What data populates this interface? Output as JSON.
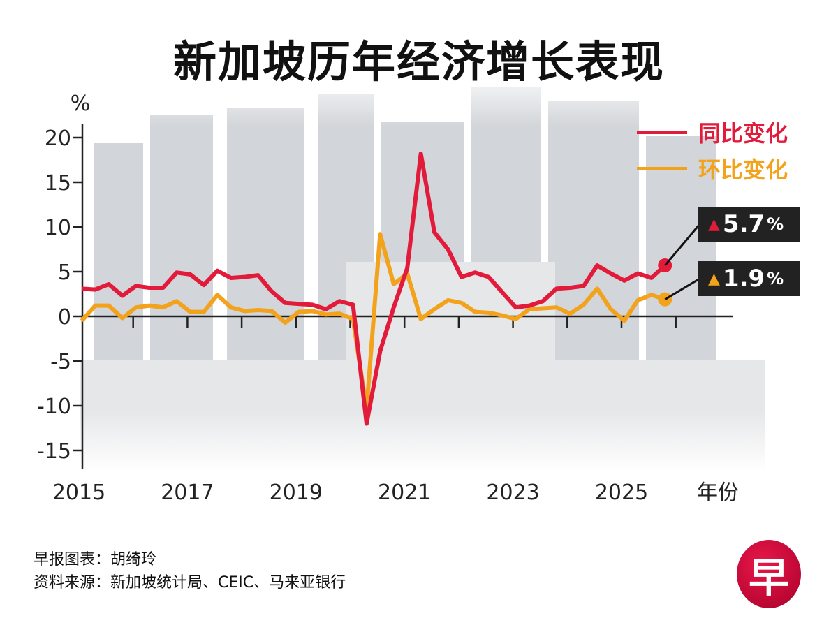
{
  "title": "新加坡历年经济增长表现",
  "footer": {
    "credit": "早报图表：胡绮玲",
    "source": "资料来源：新加坡统计局、CEIC、马来亚银行"
  },
  "logo_text": "早",
  "callouts": [
    {
      "icon": "triangle-up-icon",
      "value": "5.7",
      "unit": "%",
      "color": "#e31b3b"
    },
    {
      "icon": "triangle-up-icon",
      "value": "1.9",
      "unit": "%",
      "color": "#f3a21c"
    }
  ],
  "chart_data": {
    "type": "line",
    "title": "新加坡历年经济增长表现",
    "ylabel": "%",
    "xlabel": "年份",
    "ylim": [
      -15,
      20
    ],
    "yticks": [
      20,
      15,
      10,
      5,
      0,
      -5,
      -10,
      -15
    ],
    "xticks": [
      "2015",
      "2017",
      "2019",
      "2021",
      "2023",
      "2025"
    ],
    "grid": false,
    "legend_position": "top-right",
    "x": [
      "2015Q1",
      "2015Q2",
      "2015Q3",
      "2015Q4",
      "2016Q1",
      "2016Q2",
      "2016Q3",
      "2016Q4",
      "2017Q1",
      "2017Q2",
      "2017Q3",
      "2017Q4",
      "2018Q1",
      "2018Q2",
      "2018Q3",
      "2018Q4",
      "2019Q1",
      "2019Q2",
      "2019Q3",
      "2019Q4",
      "2020Q1",
      "2020Q2",
      "2020Q3",
      "2020Q4",
      "2021Q1",
      "2021Q2",
      "2021Q3",
      "2021Q4",
      "2022Q1",
      "2022Q2",
      "2022Q3",
      "2022Q4",
      "2023Q1",
      "2023Q2",
      "2023Q3",
      "2023Q4",
      "2024Q1",
      "2024Q2",
      "2024Q3",
      "2024Q4",
      "2025Q1",
      "2025Q2",
      "2025Q3",
      "2025Q4"
    ],
    "series": [
      {
        "name": "同比变化",
        "color": "#e31b3b",
        "values": [
          3.1,
          3.0,
          3.6,
          2.3,
          3.4,
          3.2,
          3.2,
          4.9,
          4.7,
          3.5,
          5.1,
          4.3,
          4.4,
          4.6,
          2.8,
          1.5,
          1.4,
          1.3,
          0.8,
          1.7,
          1.3,
          -12.0,
          -3.9,
          1.0,
          5.4,
          18.2,
          9.4,
          7.5,
          4.4,
          4.9,
          4.4,
          2.7,
          1.0,
          1.2,
          1.7,
          3.1,
          3.2,
          3.4,
          5.7,
          4.8,
          4.0,
          4.8,
          4.3,
          5.7
        ]
      },
      {
        "name": "环比变化",
        "color": "#f3a21c",
        "values": [
          -0.5,
          1.2,
          1.2,
          -0.2,
          1.0,
          1.2,
          1.0,
          1.7,
          0.5,
          0.5,
          2.4,
          1.0,
          0.6,
          0.7,
          0.6,
          -0.7,
          0.5,
          0.6,
          0.2,
          0.3,
          -0.3,
          -10.4,
          9.2,
          3.6,
          4.8,
          -0.3,
          0.8,
          1.8,
          1.5,
          0.5,
          0.4,
          0.1,
          -0.3,
          0.8,
          0.9,
          1.0,
          0.3,
          1.3,
          3.1,
          0.8,
          -0.5,
          1.8,
          2.4,
          1.9
        ]
      }
    ]
  }
}
